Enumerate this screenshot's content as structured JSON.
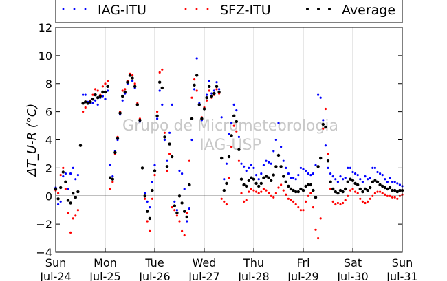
{
  "chart_data": {
    "type": "scatter",
    "title": "",
    "ylabel": "ΔT_U-R (°C)",
    "xlabel": "",
    "watermark_lines": [
      "Grupo de Micrometeorologia",
      "IAG-USP"
    ],
    "ylim": [
      -4,
      12
    ],
    "yticks": [
      -4,
      -2,
      0,
      2,
      4,
      6,
      8,
      10,
      12
    ],
    "xlim": [
      0,
      7
    ],
    "xticks": [
      {
        "x": 0,
        "day": "Sun",
        "date": "Jul-24"
      },
      {
        "x": 1,
        "day": "Mon",
        "date": "Jul-25"
      },
      {
        "x": 2,
        "day": "Tue",
        "date": "Jul-26"
      },
      {
        "x": 3,
        "day": "Wed",
        "date": "Jul-27"
      },
      {
        "x": 4,
        "day": "Thu",
        "date": "Jul-28"
      },
      {
        "x": 5,
        "day": "Fri",
        "date": "Jul-29"
      },
      {
        "x": 6,
        "day": "Sat",
        "date": "Jul-30"
      },
      {
        "x": 7,
        "day": "Sun",
        "date": "Jul-31"
      }
    ],
    "x_unit": "days",
    "grid": "vertical",
    "zero_line": true,
    "legend_position": "top",
    "series": [
      {
        "name": "IAG-ITU",
        "color": "#0000ff",
        "x": [
          0,
          0.05,
          0.1,
          0.15,
          0.2,
          0.25,
          0.3,
          0.35,
          0.4,
          0.45,
          0.5,
          0.55,
          0.6,
          0.65,
          0.7,
          0.75,
          0.8,
          0.85,
          0.9,
          0.95,
          1,
          1.05,
          1.1,
          1.15,
          1.2,
          1.25,
          1.3,
          1.35,
          1.4,
          1.45,
          1.5,
          1.55,
          1.6,
          1.65,
          1.7,
          1.75,
          1.8,
          1.85,
          1.9,
          1.95,
          2,
          2.05,
          2.1,
          2.15,
          2.2,
          2.25,
          2.3,
          2.35,
          2.4,
          2.45,
          2.5,
          2.55,
          2.6,
          2.65,
          2.7,
          2.75,
          2.8,
          2.85,
          2.9,
          2.95,
          3,
          3.05,
          3.1,
          3.15,
          3.2,
          3.25,
          3.3,
          3.35,
          3.4,
          3.45,
          3.5,
          3.55,
          3.6,
          3.65,
          3.7,
          3.75,
          3.8,
          3.85,
          3.9,
          3.95,
          4,
          4.05,
          4.1,
          4.15,
          4.2,
          4.25,
          4.3,
          4.35,
          4.4,
          4.45,
          4.5,
          4.55,
          4.6,
          4.65,
          4.7,
          4.75,
          4.8,
          4.85,
          4.9,
          4.95,
          5,
          5.05,
          5.1,
          5.15,
          5.2,
          5.25,
          5.3,
          5.35,
          5.4,
          5.45,
          5.5,
          5.55,
          5.6,
          5.65,
          5.7,
          5.75,
          5.8,
          5.85,
          5.9,
          5.95,
          6,
          6.05,
          6.1,
          6.15,
          6.2,
          6.25,
          6.3,
          6.35,
          6.4,
          6.45,
          6.5,
          6.55,
          6.6,
          6.65,
          6.7,
          6.75,
          6.8,
          6.85,
          6.9,
          6.95,
          7
        ],
        "y": [
          0.6,
          -0.6,
          -0.4,
          1.4,
          1.6,
          0.5,
          1.6,
          2.0,
          1.2,
          1.5,
          3.6,
          7.2,
          7.2,
          6.7,
          6.6,
          6.6,
          6.8,
          6.5,
          7.0,
          7.1,
          6.9,
          7.5,
          2.2,
          1.4,
          3.2,
          4.0,
          5.8,
          6.8,
          7.3,
          8.0,
          8.6,
          8.2,
          7.7,
          6.5,
          5.3,
          2.0,
          0.2,
          -0.4,
          -0.8,
          1.0,
          2.2,
          5.5,
          7.5,
          6.5,
          4.0,
          2.5,
          4.5,
          6.5,
          -0.4,
          -1.0,
          1.8,
          1.6,
          0.5,
          -1.8,
          -0.9,
          4.0,
          7.6,
          9.8,
          6.6,
          5.4,
          6.2,
          7.2,
          8.2,
          7.3,
          7.5,
          8.1,
          7.6,
          5.6,
          1.2,
          2.3,
          4.4,
          5.2,
          6.5,
          6.1,
          4.2,
          2.3,
          2.1,
          1.8,
          2.0,
          2.2,
          2.0,
          1.5,
          1.2,
          1.6,
          2.2,
          2.5,
          2.4,
          2.3,
          3.2,
          4.0,
          5.2,
          3.5,
          2.5,
          2.0,
          1.6,
          1.3,
          1.3,
          1.2,
          1.5,
          2.0,
          1.9,
          1.8,
          1.6,
          1.5,
          1.6,
          2.2,
          7.2,
          7.0,
          5.4,
          3.6,
          2.0,
          1.6,
          1.4,
          1.2,
          1.0,
          1.4,
          1.2,
          1.3,
          2.0,
          2.0,
          1.7,
          1.6,
          1.5,
          1.2,
          1.0,
          1.4,
          1.2,
          1.3,
          2.0,
          2.0,
          1.7,
          1.6,
          1.5,
          1.2,
          1.0,
          1.3,
          1.0,
          1.0,
          0.9,
          0.8,
          0.7
        ]
      },
      {
        "name": "SFZ-ITU",
        "color": "#ff0000",
        "x": [
          0,
          0.05,
          0.1,
          0.15,
          0.2,
          0.25,
          0.3,
          0.35,
          0.4,
          0.45,
          0.5,
          0.55,
          0.6,
          0.65,
          0.7,
          0.75,
          0.8,
          0.85,
          0.9,
          0.95,
          1,
          1.05,
          1.1,
          1.15,
          1.2,
          1.25,
          1.3,
          1.35,
          1.4,
          1.45,
          1.5,
          1.55,
          1.6,
          1.65,
          1.7,
          1.75,
          1.8,
          1.85,
          1.9,
          1.95,
          2,
          2.05,
          2.1,
          2.15,
          2.2,
          2.25,
          2.3,
          2.35,
          2.4,
          2.45,
          2.5,
          2.55,
          2.6,
          2.65,
          2.7,
          2.75,
          2.8,
          2.85,
          2.9,
          2.95,
          3,
          3.05,
          3.1,
          3.15,
          3.2,
          3.25,
          3.3,
          3.35,
          3.4,
          3.45,
          3.5,
          3.55,
          3.6,
          3.65,
          3.7,
          3.75,
          3.8,
          3.85,
          3.9,
          3.95,
          4,
          4.05,
          4.1,
          4.15,
          4.2,
          4.25,
          4.3,
          4.35,
          4.4,
          4.45,
          4.5,
          4.55,
          4.6,
          4.65,
          4.7,
          4.75,
          4.8,
          4.85,
          4.9,
          4.95,
          5,
          5.05,
          5.1,
          5.15,
          5.2,
          5.25,
          5.3,
          5.35,
          5.4,
          5.45,
          5.5,
          5.55,
          5.6,
          5.65,
          5.7,
          5.75,
          5.8,
          5.85,
          5.9,
          5.95,
          6,
          6.05,
          6.1,
          6.15,
          6.2,
          6.25,
          6.3,
          6.35,
          6.4,
          6.45,
          6.5,
          6.55,
          6.6,
          6.65,
          6.7,
          6.75,
          6.8,
          6.85,
          6.9,
          6.95,
          7
        ],
        "y": [
          0.4,
          0.2,
          1.5,
          2.0,
          0.5,
          -1.2,
          -2.6,
          -1.6,
          -1.4,
          -1.0,
          3.6,
          6.0,
          6.3,
          6.6,
          6.8,
          7.2,
          7.6,
          7.5,
          7.2,
          7.8,
          8.0,
          8.2,
          0.5,
          1.0,
          3.0,
          4.2,
          6.0,
          7.5,
          7.6,
          8.2,
          8.7,
          8.6,
          8.0,
          6.6,
          5.5,
          2.0,
          -0.2,
          -1.8,
          -2.5,
          -0.2,
          1.5,
          6.0,
          8.8,
          9.0,
          4.5,
          1.8,
          3.0,
          -0.8,
          -1.0,
          -1.4,
          -1.8,
          -2.5,
          -2.8,
          -1.2,
          2.5,
          7.0,
          8.3,
          7.5,
          6.5,
          5.6,
          6.3,
          6.8,
          7.5,
          7.0,
          7.2,
          7.6,
          7.3,
          -0.2,
          -0.4,
          -0.6,
          1.3,
          3.5,
          5.0,
          4.6,
          2.5,
          0.2,
          -0.4,
          -0.3,
          0.3,
          0.5,
          0.4,
          0.3,
          0.2,
          0.3,
          0.5,
          0.4,
          0.2,
          0.0,
          -0.1,
          0.2,
          0.6,
          0.8,
          0.4,
          0.1,
          -0.2,
          -0.3,
          -0.4,
          -0.6,
          -0.8,
          -1.0,
          -1.0,
          -0.4,
          0.0,
          0.2,
          -0.8,
          -2.4,
          -3.0,
          -1.6,
          4.8,
          6.2,
          3.0,
          0.5,
          -0.4,
          -0.6,
          -0.5,
          -0.6,
          -0.5,
          -0.3,
          0.0,
          0.4,
          0.5,
          0.3,
          0.2,
          -0.2,
          -0.4,
          -0.5,
          -0.4,
          -0.2,
          0.0,
          0.2,
          0.3,
          0.3,
          0.2,
          0.1,
          0.0,
          0.0,
          -0.1,
          -0.1,
          -0.2,
          0.0,
          0.1
        ]
      },
      {
        "name": "Average",
        "color": "#000000",
        "x": [
          0,
          0.05,
          0.1,
          0.15,
          0.2,
          0.25,
          0.3,
          0.35,
          0.4,
          0.45,
          0.5,
          0.55,
          0.6,
          0.65,
          0.7,
          0.75,
          0.8,
          0.85,
          0.9,
          0.95,
          1,
          1.05,
          1.1,
          1.15,
          1.2,
          1.25,
          1.3,
          1.35,
          1.4,
          1.45,
          1.5,
          1.55,
          1.6,
          1.65,
          1.7,
          1.75,
          1.8,
          1.85,
          1.9,
          1.95,
          2,
          2.05,
          2.1,
          2.15,
          2.2,
          2.25,
          2.3,
          2.35,
          2.4,
          2.45,
          2.5,
          2.55,
          2.6,
          2.65,
          2.7,
          2.75,
          2.8,
          2.85,
          2.9,
          2.95,
          3,
          3.05,
          3.1,
          3.15,
          3.2,
          3.25,
          3.3,
          3.35,
          3.4,
          3.45,
          3.5,
          3.55,
          3.6,
          3.65,
          3.7,
          3.75,
          3.8,
          3.85,
          3.9,
          3.95,
          4,
          4.05,
          4.1,
          4.15,
          4.2,
          4.25,
          4.3,
          4.35,
          4.4,
          4.45,
          4.5,
          4.55,
          4.6,
          4.65,
          4.7,
          4.75,
          4.8,
          4.85,
          4.9,
          4.95,
          5,
          5.05,
          5.1,
          5.15,
          5.2,
          5.25,
          5.3,
          5.35,
          5.4,
          5.45,
          5.5,
          5.55,
          5.6,
          5.65,
          5.7,
          5.75,
          5.8,
          5.85,
          5.9,
          5.95,
          6,
          6.05,
          6.1,
          6.15,
          6.2,
          6.25,
          6.3,
          6.35,
          6.4,
          6.45,
          6.5,
          6.55,
          6.6,
          6.65,
          6.7,
          6.75,
          6.8,
          6.85,
          6.9,
          6.95,
          7
        ],
        "y": [
          0.5,
          -0.2,
          0.6,
          1.7,
          1.0,
          -0.3,
          -0.5,
          0.2,
          -0.1,
          0.3,
          3.6,
          6.6,
          6.7,
          6.6,
          6.7,
          6.9,
          7.2,
          7.0,
          7.1,
          7.4,
          7.4,
          7.8,
          1.3,
          1.2,
          3.1,
          4.1,
          5.9,
          7.1,
          7.4,
          8.1,
          8.6,
          8.4,
          7.8,
          6.5,
          5.4,
          2.0,
          0.0,
          -1.1,
          -1.6,
          0.4,
          1.8,
          5.7,
          8.1,
          7.7,
          4.2,
          2.1,
          3.7,
          2.8,
          -0.7,
          -1.2,
          0.0,
          -0.5,
          -1.1,
          -1.5,
          0.8,
          5.5,
          7.9,
          8.6,
          6.5,
          5.5,
          6.2,
          7.0,
          7.8,
          7.1,
          7.3,
          7.8,
          7.4,
          2.7,
          0.4,
          0.9,
          2.8,
          4.3,
          5.7,
          5.3,
          3.3,
          1.2,
          0.8,
          0.7,
          1.1,
          1.3,
          1.2,
          0.9,
          0.7,
          0.9,
          1.3,
          1.4,
          1.3,
          1.1,
          1.5,
          2.1,
          2.9,
          2.1,
          1.4,
          1.0,
          0.7,
          0.5,
          0.4,
          0.3,
          0.3,
          0.5,
          0.4,
          0.7,
          0.8,
          0.8,
          0.4,
          -0.1,
          2.1,
          2.7,
          5.1,
          4.9,
          2.5,
          1.0,
          0.5,
          0.3,
          0.2,
          0.4,
          0.3,
          0.5,
          1.0,
          1.2,
          1.1,
          0.9,
          0.8,
          0.5,
          0.3,
          0.5,
          0.4,
          0.6,
          1.0,
          1.1,
          1.0,
          0.8,
          0.7,
          0.6,
          0.5,
          0.6,
          0.4,
          0.4,
          0.3,
          0.4,
          0.4
        ]
      }
    ]
  }
}
